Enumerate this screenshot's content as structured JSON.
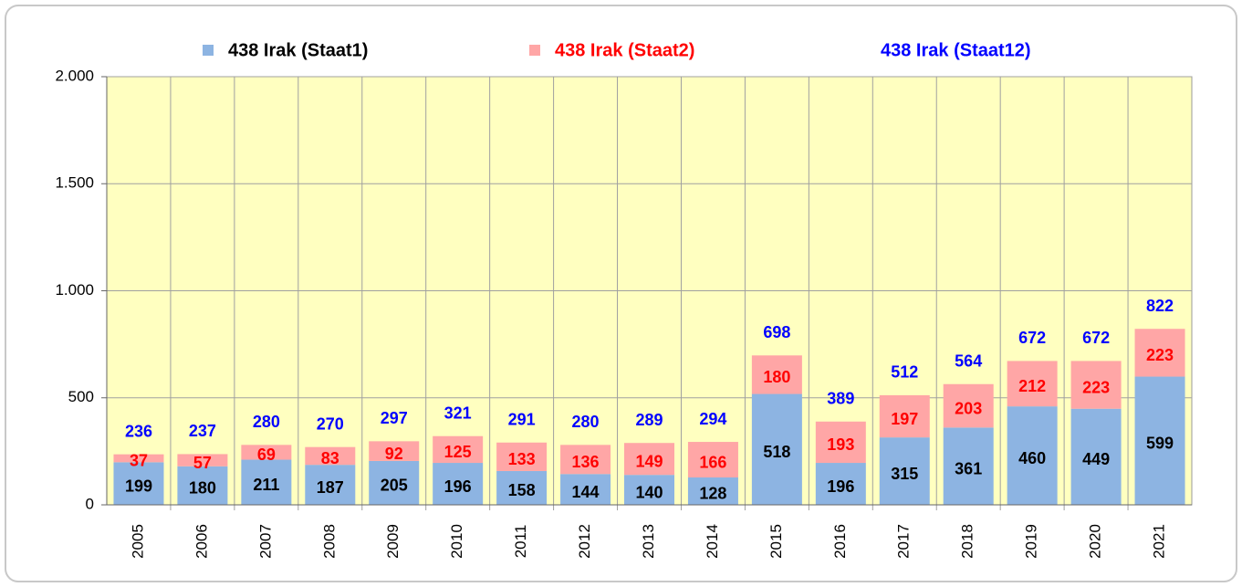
{
  "chart_data": {
    "type": "bar",
    "stacked": true,
    "categories": [
      "2005",
      "2006",
      "2007",
      "2008",
      "2009",
      "2010",
      "2011",
      "2012",
      "2013",
      "2014",
      "2015",
      "2016",
      "2017",
      "2018",
      "2019",
      "2020",
      "2021"
    ],
    "series": [
      {
        "name": "438 Irak (Staat1)",
        "color": "#8db4e2",
        "label_color": "#000000",
        "values": [
          199,
          180,
          211,
          187,
          205,
          196,
          158,
          144,
          140,
          128,
          518,
          196,
          315,
          361,
          460,
          449,
          599
        ]
      },
      {
        "name": "438 Irak (Staat2)",
        "color": "#ffa6a6",
        "label_color": "#ff0000",
        "values": [
          37,
          57,
          69,
          83,
          92,
          125,
          133,
          136,
          149,
          166,
          180,
          193,
          197,
          203,
          212,
          223,
          223
        ]
      },
      {
        "name": "438 Irak (Staat12)",
        "color": "#0000ff",
        "label_color": "#0000ff",
        "values": [
          236,
          237,
          280,
          270,
          297,
          321,
          291,
          280,
          289,
          294,
          698,
          389,
          512,
          564,
          672,
          672,
          822
        ]
      }
    ],
    "ylim": [
      0,
      2000
    ],
    "yticks": [
      0,
      500,
      {
        "value": 1000,
        "label": "1.000"
      },
      {
        "value": 1500,
        "label": "1.500"
      },
      {
        "value": 2000,
        "label": "2.000"
      }
    ],
    "grid": true,
    "legend": "top",
    "background": "#ffffc0"
  }
}
